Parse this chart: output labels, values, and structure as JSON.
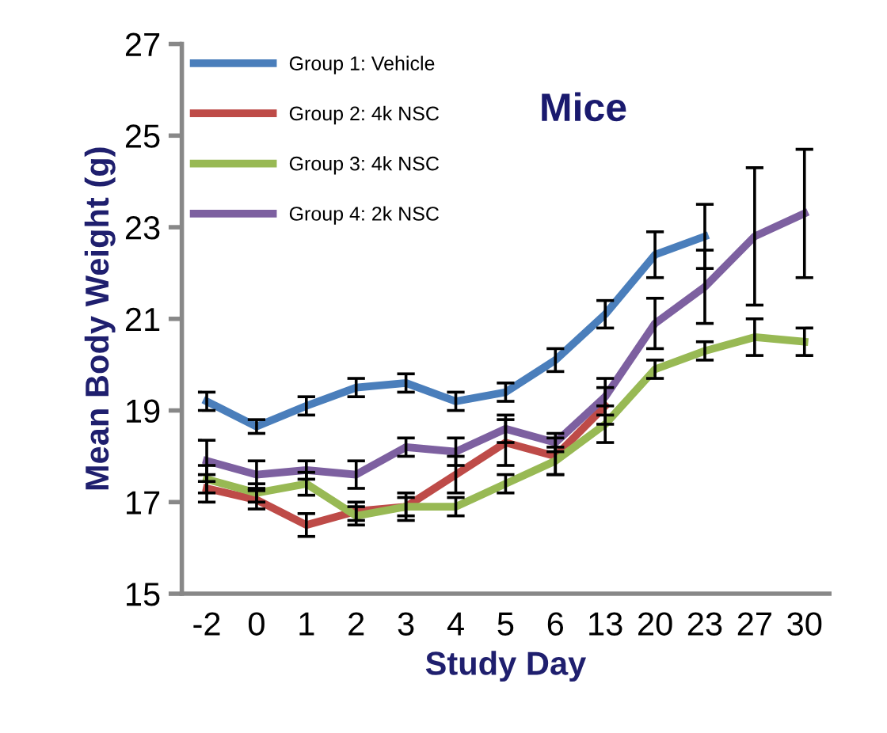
{
  "chart_data": {
    "type": "line",
    "title": "Mice",
    "xlabel": "Study Day",
    "ylabel": "Mean Body Weight (g)",
    "categories": [
      "-2",
      "0",
      "1",
      "2",
      "3",
      "4",
      "5",
      "6",
      "13",
      "20",
      "23",
      "27",
      "30"
    ],
    "ylim": [
      15,
      27
    ],
    "yticks": [
      15,
      17,
      19,
      21,
      23,
      25,
      27
    ],
    "legend": "top left",
    "marker": "none",
    "line_style": "solid",
    "grid": false,
    "series": [
      {
        "name": "Group 1: Vehicle",
        "color": "#4a7ebb",
        "values": [
          19.2,
          18.65,
          19.1,
          19.5,
          19.6,
          19.2,
          19.4,
          20.1,
          21.1,
          22.4,
          22.8,
          null,
          null
        ],
        "errors": [
          0.2,
          0.15,
          0.2,
          0.2,
          0.2,
          0.2,
          0.2,
          0.25,
          0.3,
          0.5,
          0.7,
          null,
          null
        ]
      },
      {
        "name": "Group 2: 4k NSC",
        "color": "#be4b48",
        "values": [
          17.3,
          17.05,
          16.5,
          16.8,
          16.9,
          17.6,
          18.3,
          18.0,
          19.1,
          null,
          null,
          null,
          null
        ],
        "errors": [
          0.3,
          0.2,
          0.25,
          0.2,
          0.3,
          0.4,
          0.5,
          0.4,
          0.4,
          null,
          null,
          null,
          null
        ]
      },
      {
        "name": "Group 3: 4k NSC",
        "color": "#98b954",
        "values": [
          17.5,
          17.2,
          17.4,
          16.7,
          16.9,
          16.9,
          17.4,
          17.9,
          18.7,
          19.9,
          20.3,
          20.6,
          20.5
        ],
        "errors": [
          0.3,
          0.2,
          0.25,
          0.2,
          0.2,
          0.2,
          0.2,
          0.3,
          0.4,
          0.2,
          0.2,
          0.4,
          0.3
        ]
      },
      {
        "name": "Group 4: 2k NSC",
        "color": "#7d60a0",
        "values": [
          17.9,
          17.6,
          17.7,
          17.6,
          18.2,
          18.1,
          18.6,
          18.3,
          19.3,
          20.9,
          21.7,
          22.8,
          23.3
        ],
        "errors": [
          0.45,
          0.3,
          0.2,
          0.3,
          0.2,
          0.3,
          0.3,
          0.2,
          0.4,
          0.55,
          0.8,
          1.5,
          1.4
        ]
      }
    ]
  }
}
